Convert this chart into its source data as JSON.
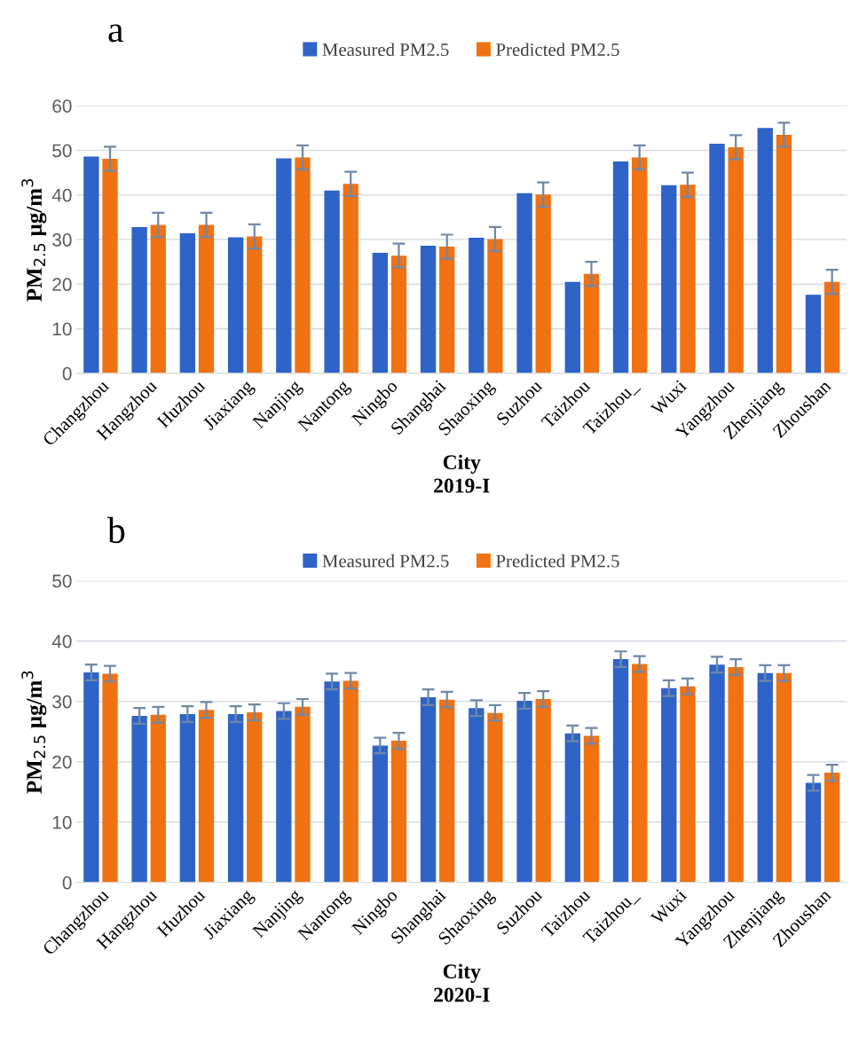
{
  "chart_data": [
    {
      "type": "bar",
      "title": "a",
      "xlabel": "City\n2019-I",
      "ylabel": "PM$_{2.5}$ μg/m$^{3}$",
      "categories": [
        "Changzhou",
        "Hangzhou",
        "Huzhou",
        "Jiaxiang",
        "Nanjing",
        "Nantong",
        "Ningbo",
        "Shanghai",
        "Shaoxing",
        "Suzhou",
        "Taizhou",
        "Taizhou_",
        "Wuxi",
        "Yangzhou",
        "Zhenjiang",
        "Zhoushan"
      ],
      "series": [
        {
          "name": "Measured PM2.5",
          "color": "#2e63c8",
          "values": [
            48.6,
            32.8,
            31.4,
            30.5,
            48.2,
            41.0,
            27.0,
            28.6,
            30.4,
            40.4,
            20.5,
            47.5,
            42.2,
            51.5,
            55.0,
            17.6
          ]
        },
        {
          "name": "Predicted PM2.5",
          "color": "#f07213",
          "values": [
            48.1,
            33.3,
            33.3,
            30.7,
            48.4,
            42.5,
            26.4,
            28.4,
            30.1,
            40.1,
            22.3,
            48.4,
            42.3,
            50.7,
            53.5,
            20.5
          ],
          "errors": [
            2.7,
            2.7,
            2.7,
            2.7,
            2.7,
            2.7,
            2.7,
            2.7,
            2.7,
            2.7,
            2.7,
            2.7,
            2.7,
            2.7,
            2.7,
            2.7
          ]
        }
      ],
      "ylim": [
        0,
        60
      ],
      "yticks": [
        0,
        10,
        20,
        30,
        40,
        50,
        60
      ],
      "grid": "y",
      "legend": "top"
    },
    {
      "type": "bar",
      "title": "b",
      "xlabel": "City\n2020-I",
      "ylabel": "PM$_{2.5}$ μg/m$^{3}$",
      "categories": [
        "Changzhou",
        "Hangzhou",
        "Huzhou",
        "Jiaxiang",
        "Nanjing",
        "Nantong",
        "Ningbo",
        "Shanghai",
        "Shaoxing",
        "Suzhou",
        "Taizhou",
        "Taizhou_",
        "Wuxi",
        "Yangzhou",
        "Zhenjiang",
        "Zhoushan"
      ],
      "series": [
        {
          "name": "Measured PM2.5",
          "color": "#2e63c8",
          "values": [
            34.8,
            27.6,
            27.9,
            27.9,
            28.4,
            33.3,
            22.7,
            30.7,
            28.9,
            30.1,
            24.7,
            37.0,
            32.2,
            36.1,
            34.7,
            16.5
          ],
          "errors": [
            1.3,
            1.3,
            1.3,
            1.3,
            1.3,
            1.3,
            1.3,
            1.3,
            1.3,
            1.3,
            1.3,
            1.3,
            1.3,
            1.3,
            1.3,
            1.3
          ]
        },
        {
          "name": "Predicted PM2.5",
          "color": "#f07213",
          "values": [
            34.6,
            27.8,
            28.6,
            28.2,
            29.1,
            33.4,
            23.5,
            30.3,
            28.1,
            30.4,
            24.3,
            36.2,
            32.5,
            35.7,
            34.7,
            18.2
          ],
          "errors": [
            1.3,
            1.3,
            1.3,
            1.3,
            1.3,
            1.3,
            1.3,
            1.3,
            1.3,
            1.3,
            1.3,
            1.3,
            1.3,
            1.3,
            1.3,
            1.3
          ]
        }
      ],
      "ylim": [
        0,
        50
      ],
      "yticks": [
        0,
        10,
        20,
        30,
        40,
        50
      ],
      "grid": "y",
      "legend": "top"
    }
  ]
}
